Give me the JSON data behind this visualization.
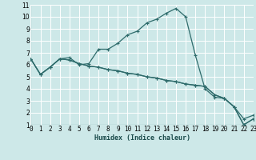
{
  "xlabel": "Humidex (Indice chaleur)",
  "bg_color": "#cde8e8",
  "grid_color": "#b8d8d8",
  "line_color": "#2e6b6b",
  "xlim": [
    0,
    23
  ],
  "ylim": [
    1,
    11
  ],
  "xticks": [
    0,
    1,
    2,
    3,
    4,
    5,
    6,
    7,
    8,
    9,
    10,
    11,
    12,
    13,
    14,
    15,
    16,
    17,
    18,
    19,
    20,
    21,
    22,
    23
  ],
  "yticks": [
    1,
    2,
    3,
    4,
    5,
    6,
    7,
    8,
    9,
    10,
    11
  ],
  "line1_x": [
    0,
    1,
    2,
    3,
    4,
    5,
    6,
    7,
    8,
    9,
    10,
    11,
    12,
    13,
    14,
    15,
    16,
    17,
    18,
    19,
    20,
    21,
    22,
    23
  ],
  "line1_y": [
    6.5,
    5.2,
    5.8,
    6.5,
    6.6,
    6.0,
    6.1,
    7.3,
    7.3,
    7.8,
    8.5,
    8.8,
    9.5,
    9.8,
    10.3,
    10.7,
    10.0,
    6.8,
    4.0,
    3.3,
    3.2,
    2.5,
    1.0,
    1.5
  ],
  "line2_x": [
    0,
    1,
    2,
    3,
    4,
    5,
    6,
    7,
    8,
    9,
    10,
    11,
    12,
    13,
    14,
    15,
    16,
    17,
    18,
    19,
    20,
    21,
    22,
    23
  ],
  "line2_y": [
    6.5,
    5.2,
    5.8,
    6.5,
    6.4,
    6.1,
    5.9,
    5.8,
    5.6,
    5.5,
    5.3,
    5.2,
    5.0,
    4.9,
    4.7,
    4.6,
    4.4,
    4.3,
    4.2,
    3.5,
    3.2,
    2.5,
    1.5,
    1.8
  ],
  "line3_x": [
    0,
    1,
    2,
    3,
    4,
    5,
    6,
    7,
    8,
    9,
    10,
    11,
    12,
    13,
    14,
    15,
    16,
    17,
    18,
    19,
    20,
    21,
    22,
    23
  ],
  "line3_y": [
    6.5,
    5.2,
    5.8,
    6.5,
    6.4,
    6.1,
    5.9,
    5.8,
    5.6,
    5.5,
    5.3,
    5.2,
    5.0,
    4.9,
    4.7,
    4.6,
    4.4,
    4.3,
    4.2,
    3.5,
    3.2,
    2.5,
    1.0,
    1.5
  ],
  "tick_fontsize": 5.5,
  "xlabel_fontsize": 6.0
}
